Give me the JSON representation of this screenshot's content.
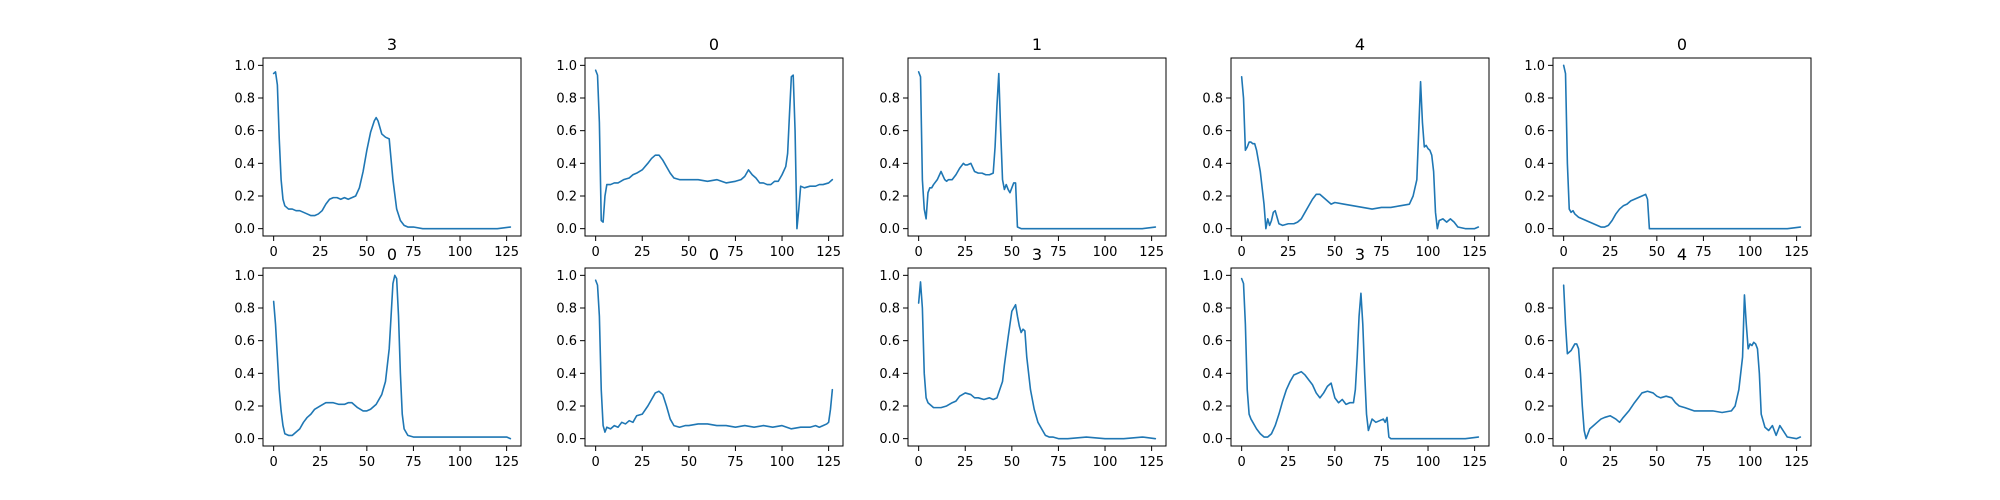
{
  "figure": {
    "background": "#ffffff",
    "line_color": "#1f77b4"
  },
  "chart_data": [
    {
      "type": "line",
      "title": "3",
      "xlim": [
        0,
        127
      ],
      "ylim": [
        0,
        1
      ],
      "yticks": [
        0.0,
        0.2,
        0.4,
        0.6,
        0.8,
        1.0
      ],
      "x": [
        0,
        1,
        2,
        3,
        4,
        5,
        6,
        8,
        10,
        12,
        14,
        16,
        18,
        20,
        22,
        24,
        26,
        28,
        30,
        32,
        34,
        36,
        38,
        40,
        42,
        44,
        46,
        48,
        50,
        52,
        54,
        55,
        56,
        57,
        58,
        60,
        62,
        64,
        66,
        68,
        70,
        72,
        75,
        80,
        90,
        100,
        110,
        120,
        127
      ],
      "y": [
        0.95,
        0.96,
        0.88,
        0.55,
        0.3,
        0.18,
        0.14,
        0.12,
        0.12,
        0.11,
        0.11,
        0.1,
        0.09,
        0.08,
        0.08,
        0.09,
        0.11,
        0.15,
        0.18,
        0.19,
        0.19,
        0.18,
        0.19,
        0.18,
        0.19,
        0.2,
        0.25,
        0.35,
        0.48,
        0.59,
        0.66,
        0.68,
        0.66,
        0.62,
        0.58,
        0.56,
        0.55,
        0.3,
        0.12,
        0.05,
        0.02,
        0.01,
        0.01,
        0.0,
        0.0,
        0.0,
        0.0,
        0.0,
        0.01
      ]
    },
    {
      "type": "line",
      "title": "0",
      "xlim": [
        0,
        127
      ],
      "ylim": [
        0,
        1
      ],
      "yticks": [
        0.0,
        0.2,
        0.4,
        0.6,
        0.8,
        1.0
      ],
      "x": [
        0,
        1,
        2,
        3,
        4,
        5,
        6,
        8,
        10,
        12,
        15,
        18,
        20,
        22,
        25,
        28,
        30,
        32,
        34,
        36,
        38,
        40,
        42,
        45,
        50,
        55,
        60,
        65,
        70,
        75,
        78,
        80,
        82,
        84,
        86,
        88,
        90,
        92,
        94,
        96,
        98,
        100,
        102,
        103,
        104,
        105,
        106,
        107,
        108,
        109,
        110,
        112,
        115,
        118,
        120,
        122,
        125,
        127
      ],
      "y": [
        0.97,
        0.94,
        0.65,
        0.05,
        0.04,
        0.2,
        0.27,
        0.27,
        0.28,
        0.28,
        0.3,
        0.31,
        0.33,
        0.34,
        0.36,
        0.4,
        0.43,
        0.45,
        0.45,
        0.42,
        0.38,
        0.34,
        0.31,
        0.3,
        0.3,
        0.3,
        0.29,
        0.3,
        0.28,
        0.29,
        0.3,
        0.32,
        0.36,
        0.33,
        0.31,
        0.28,
        0.28,
        0.27,
        0.27,
        0.29,
        0.29,
        0.33,
        0.38,
        0.46,
        0.7,
        0.93,
        0.94,
        0.6,
        0.0,
        0.12,
        0.26,
        0.25,
        0.26,
        0.26,
        0.27,
        0.27,
        0.28,
        0.3
      ]
    },
    {
      "type": "line",
      "title": "1",
      "xlim": [
        0,
        127
      ],
      "ylim": [
        0,
        1
      ],
      "yticks": [
        0.0,
        0.2,
        0.4,
        0.6,
        0.8
      ],
      "x": [
        0,
        1,
        2,
        3,
        4,
        5,
        6,
        7,
        8,
        10,
        12,
        14,
        15,
        16,
        18,
        20,
        22,
        24,
        25,
        26,
        28,
        30,
        32,
        34,
        36,
        38,
        40,
        41,
        42,
        43,
        44,
        45,
        46,
        47,
        48,
        49,
        50,
        51,
        52,
        53,
        55,
        60,
        70,
        80,
        90,
        100,
        110,
        120,
        127
      ],
      "y": [
        0.96,
        0.93,
        0.3,
        0.12,
        0.06,
        0.22,
        0.25,
        0.25,
        0.27,
        0.3,
        0.35,
        0.3,
        0.29,
        0.3,
        0.3,
        0.33,
        0.37,
        0.4,
        0.39,
        0.39,
        0.4,
        0.35,
        0.34,
        0.34,
        0.33,
        0.33,
        0.34,
        0.5,
        0.75,
        0.95,
        0.6,
        0.3,
        0.24,
        0.27,
        0.24,
        0.22,
        0.25,
        0.28,
        0.28,
        0.01,
        0.0,
        0.0,
        0.0,
        0.0,
        0.0,
        0.0,
        0.0,
        0.0,
        0.01
      ]
    },
    {
      "type": "line",
      "title": "4",
      "xlim": [
        0,
        127
      ],
      "ylim": [
        0,
        1
      ],
      "yticks": [
        0.0,
        0.2,
        0.4,
        0.6,
        0.8
      ],
      "x": [
        0,
        1,
        2,
        3,
        4,
        5,
        6,
        7,
        8,
        10,
        12,
        13,
        14,
        15,
        16,
        17,
        18,
        20,
        22,
        25,
        28,
        30,
        32,
        34,
        36,
        38,
        40,
        42,
        44,
        46,
        48,
        50,
        55,
        60,
        65,
        70,
        75,
        80,
        85,
        90,
        92,
        94,
        95,
        96,
        97,
        98,
        99,
        100,
        101,
        102,
        103,
        104,
        105,
        106,
        108,
        110,
        112,
        114,
        116,
        120,
        125,
        127
      ],
      "y": [
        0.93,
        0.8,
        0.48,
        0.5,
        0.53,
        0.53,
        0.52,
        0.52,
        0.48,
        0.35,
        0.15,
        0.0,
        0.06,
        0.02,
        0.05,
        0.1,
        0.11,
        0.03,
        0.02,
        0.03,
        0.03,
        0.04,
        0.06,
        0.1,
        0.14,
        0.18,
        0.21,
        0.21,
        0.19,
        0.17,
        0.15,
        0.16,
        0.15,
        0.14,
        0.13,
        0.12,
        0.13,
        0.13,
        0.14,
        0.15,
        0.2,
        0.3,
        0.6,
        0.9,
        0.65,
        0.5,
        0.51,
        0.49,
        0.48,
        0.45,
        0.35,
        0.1,
        0.0,
        0.05,
        0.06,
        0.04,
        0.06,
        0.04,
        0.01,
        0.0,
        0.0,
        0.01
      ]
    },
    {
      "type": "line",
      "title": "0",
      "xlim": [
        0,
        127
      ],
      "ylim": [
        0,
        1
      ],
      "yticks": [
        0.0,
        0.2,
        0.4,
        0.6,
        0.8,
        1.0
      ],
      "x": [
        0,
        1,
        2,
        3,
        4,
        5,
        6,
        8,
        10,
        12,
        14,
        16,
        18,
        20,
        22,
        24,
        26,
        28,
        30,
        32,
        34,
        36,
        38,
        40,
        42,
        44,
        45,
        46,
        50,
        60,
        70,
        80,
        90,
        100,
        110,
        120,
        127
      ],
      "y": [
        1.0,
        0.95,
        0.4,
        0.12,
        0.1,
        0.11,
        0.09,
        0.07,
        0.06,
        0.05,
        0.04,
        0.03,
        0.02,
        0.01,
        0.01,
        0.02,
        0.05,
        0.09,
        0.12,
        0.14,
        0.15,
        0.17,
        0.18,
        0.19,
        0.2,
        0.21,
        0.18,
        0.0,
        0.0,
        0.0,
        0.0,
        0.0,
        0.0,
        0.0,
        0.0,
        0.0,
        0.01
      ]
    },
    {
      "type": "line",
      "title": "0",
      "xlim": [
        0,
        127
      ],
      "ylim": [
        0,
        1
      ],
      "yticks": [
        0.0,
        0.2,
        0.4,
        0.6,
        0.8,
        1.0
      ],
      "x": [
        0,
        1,
        2,
        3,
        4,
        5,
        6,
        8,
        10,
        12,
        14,
        16,
        18,
        20,
        22,
        25,
        28,
        30,
        32,
        35,
        38,
        40,
        42,
        45,
        48,
        50,
        52,
        55,
        58,
        60,
        62,
        63,
        64,
        65,
        66,
        67,
        68,
        69,
        70,
        72,
        75,
        80,
        90,
        100,
        110,
        120,
        125,
        127
      ],
      "y": [
        0.84,
        0.7,
        0.5,
        0.3,
        0.17,
        0.08,
        0.03,
        0.02,
        0.02,
        0.04,
        0.06,
        0.1,
        0.13,
        0.15,
        0.18,
        0.2,
        0.22,
        0.22,
        0.22,
        0.21,
        0.21,
        0.22,
        0.22,
        0.19,
        0.17,
        0.17,
        0.18,
        0.21,
        0.27,
        0.35,
        0.55,
        0.75,
        0.95,
        1.0,
        0.98,
        0.75,
        0.4,
        0.15,
        0.06,
        0.02,
        0.01,
        0.01,
        0.01,
        0.01,
        0.01,
        0.01,
        0.01,
        0.0
      ]
    },
    {
      "type": "line",
      "title": "0",
      "xlim": [
        0,
        127
      ],
      "ylim": [
        0,
        1
      ],
      "yticks": [
        0.0,
        0.2,
        0.4,
        0.6,
        0.8,
        1.0
      ],
      "x": [
        0,
        1,
        2,
        3,
        4,
        5,
        6,
        8,
        10,
        12,
        14,
        16,
        18,
        20,
        22,
        25,
        28,
        30,
        32,
        34,
        36,
        38,
        40,
        42,
        45,
        48,
        50,
        55,
        60,
        65,
        70,
        75,
        80,
        85,
        90,
        95,
        100,
        105,
        110,
        115,
        118,
        120,
        122,
        124,
        125,
        126,
        127
      ],
      "y": [
        0.97,
        0.94,
        0.75,
        0.3,
        0.08,
        0.04,
        0.07,
        0.06,
        0.08,
        0.07,
        0.1,
        0.09,
        0.11,
        0.1,
        0.14,
        0.15,
        0.2,
        0.24,
        0.28,
        0.29,
        0.27,
        0.2,
        0.12,
        0.08,
        0.07,
        0.08,
        0.08,
        0.09,
        0.09,
        0.08,
        0.08,
        0.07,
        0.08,
        0.07,
        0.08,
        0.07,
        0.08,
        0.06,
        0.07,
        0.07,
        0.08,
        0.07,
        0.08,
        0.09,
        0.1,
        0.18,
        0.3
      ]
    },
    {
      "type": "line",
      "title": "3",
      "xlim": [
        0,
        127
      ],
      "ylim": [
        0,
        1
      ],
      "yticks": [
        0.0,
        0.2,
        0.4,
        0.6,
        0.8,
        1.0
      ],
      "x": [
        0,
        1,
        2,
        3,
        4,
        5,
        6,
        8,
        10,
        12,
        15,
        18,
        20,
        22,
        25,
        28,
        30,
        32,
        35,
        38,
        40,
        42,
        45,
        46,
        48,
        50,
        52,
        53,
        54,
        55,
        56,
        57,
        58,
        60,
        62,
        64,
        66,
        68,
        70,
        72,
        75,
        80,
        90,
        100,
        110,
        120,
        127
      ],
      "y": [
        0.83,
        0.96,
        0.8,
        0.4,
        0.25,
        0.22,
        0.21,
        0.19,
        0.19,
        0.19,
        0.2,
        0.22,
        0.23,
        0.26,
        0.28,
        0.27,
        0.25,
        0.25,
        0.24,
        0.25,
        0.24,
        0.25,
        0.35,
        0.45,
        0.62,
        0.78,
        0.82,
        0.75,
        0.69,
        0.65,
        0.67,
        0.66,
        0.5,
        0.3,
        0.18,
        0.1,
        0.06,
        0.02,
        0.01,
        0.01,
        0.0,
        0.0,
        0.01,
        0.0,
        0.0,
        0.01,
        0.0
      ]
    },
    {
      "type": "line",
      "title": "3",
      "xlim": [
        0,
        127
      ],
      "ylim": [
        0,
        1
      ],
      "yticks": [
        0.0,
        0.2,
        0.4,
        0.6,
        0.8,
        1.0
      ],
      "x": [
        0,
        1,
        2,
        3,
        4,
        5,
        6,
        8,
        10,
        12,
        14,
        16,
        18,
        20,
        22,
        24,
        26,
        28,
        30,
        32,
        34,
        36,
        38,
        40,
        42,
        44,
        46,
        48,
        50,
        52,
        54,
        56,
        58,
        60,
        61,
        62,
        63,
        64,
        65,
        66,
        67,
        68,
        70,
        72,
        74,
        76,
        77,
        78,
        79,
        80,
        90,
        100,
        110,
        120,
        127
      ],
      "y": [
        0.98,
        0.95,
        0.7,
        0.3,
        0.15,
        0.12,
        0.1,
        0.06,
        0.03,
        0.01,
        0.01,
        0.03,
        0.08,
        0.15,
        0.23,
        0.3,
        0.35,
        0.39,
        0.4,
        0.41,
        0.39,
        0.36,
        0.33,
        0.28,
        0.25,
        0.28,
        0.32,
        0.34,
        0.25,
        0.22,
        0.24,
        0.21,
        0.22,
        0.22,
        0.3,
        0.5,
        0.75,
        0.89,
        0.7,
        0.4,
        0.15,
        0.05,
        0.12,
        0.1,
        0.11,
        0.12,
        0.1,
        0.13,
        0.01,
        0.0,
        0.0,
        0.0,
        0.0,
        0.0,
        0.01
      ]
    },
    {
      "type": "line",
      "title": "4",
      "xlim": [
        0,
        127
      ],
      "ylim": [
        0,
        1
      ],
      "yticks": [
        0.0,
        0.2,
        0.4,
        0.6,
        0.8
      ],
      "x": [
        0,
        1,
        2,
        3,
        4,
        5,
        6,
        7,
        8,
        9,
        10,
        11,
        12,
        14,
        16,
        18,
        20,
        22,
        25,
        28,
        30,
        32,
        35,
        38,
        40,
        42,
        45,
        48,
        50,
        52,
        55,
        58,
        60,
        62,
        65,
        70,
        75,
        80,
        85,
        90,
        92,
        94,
        96,
        97,
        98,
        99,
        100,
        101,
        102,
        103,
        104,
        105,
        106,
        108,
        110,
        112,
        114,
        116,
        120,
        125,
        127
      ],
      "y": [
        0.94,
        0.7,
        0.52,
        0.53,
        0.54,
        0.56,
        0.58,
        0.58,
        0.55,
        0.4,
        0.2,
        0.05,
        0.0,
        0.06,
        0.08,
        0.1,
        0.12,
        0.13,
        0.14,
        0.12,
        0.1,
        0.13,
        0.17,
        0.22,
        0.25,
        0.28,
        0.29,
        0.28,
        0.26,
        0.25,
        0.26,
        0.25,
        0.22,
        0.2,
        0.19,
        0.17,
        0.17,
        0.17,
        0.16,
        0.17,
        0.2,
        0.3,
        0.5,
        0.88,
        0.7,
        0.55,
        0.58,
        0.57,
        0.59,
        0.58,
        0.55,
        0.4,
        0.15,
        0.07,
        0.05,
        0.08,
        0.02,
        0.08,
        0.01,
        0.0,
        0.01
      ]
    }
  ]
}
